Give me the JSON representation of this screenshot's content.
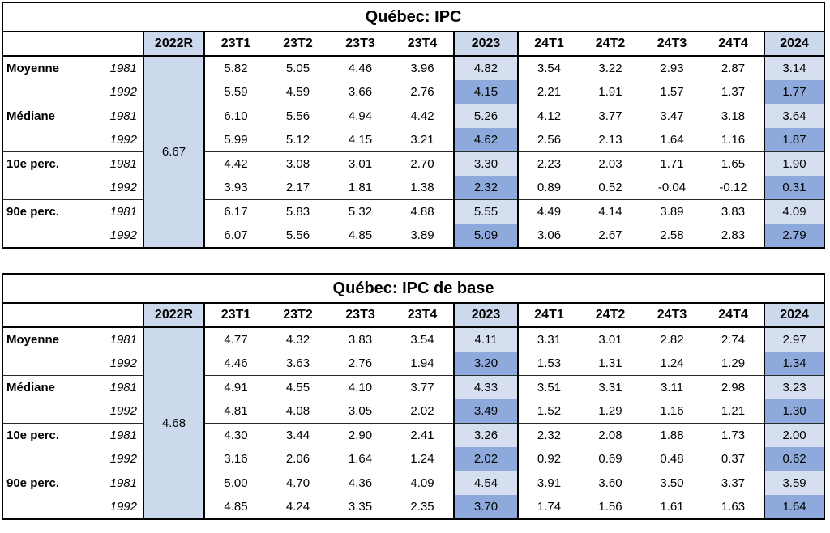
{
  "colors": {
    "header_blue": "#ccd8eb",
    "annual_light_blue": "#d5dff0",
    "annual_dark_blue": "#8ea9db",
    "border_black": "#000000"
  },
  "tables": [
    {
      "title": "Québec: IPC",
      "columns": [
        "2022R",
        "23T1",
        "23T2",
        "23T3",
        "23T4",
        "2023",
        "24T1",
        "24T2",
        "24T3",
        "24T4",
        "2024"
      ],
      "ref_value": "6.67",
      "rows": [
        {
          "group": "Moyenne",
          "year": "1981",
          "values": [
            "5.82",
            "5.05",
            "4.46",
            "3.96",
            "4.82",
            "3.54",
            "3.22",
            "2.93",
            "2.87",
            "3.14"
          ]
        },
        {
          "group": "",
          "year": "1992",
          "values": [
            "5.59",
            "4.59",
            "3.66",
            "2.76",
            "4.15",
            "2.21",
            "1.91",
            "1.57",
            "1.37",
            "1.77"
          ]
        },
        {
          "group": "Médiane",
          "year": "1981",
          "values": [
            "6.10",
            "5.56",
            "4.94",
            "4.42",
            "5.26",
            "4.12",
            "3.77",
            "3.47",
            "3.18",
            "3.64"
          ]
        },
        {
          "group": "",
          "year": "1992",
          "values": [
            "5.99",
            "5.12",
            "4.15",
            "3.21",
            "4.62",
            "2.56",
            "2.13",
            "1.64",
            "1.16",
            "1.87"
          ]
        },
        {
          "group": "10e perc.",
          "year": "1981",
          "values": [
            "4.42",
            "3.08",
            "3.01",
            "2.70",
            "3.30",
            "2.23",
            "2.03",
            "1.71",
            "1.65",
            "1.90"
          ]
        },
        {
          "group": "",
          "year": "1992",
          "values": [
            "3.93",
            "2.17",
            "1.81",
            "1.38",
            "2.32",
            "0.89",
            "0.52",
            "-0.04",
            "-0.12",
            "0.31"
          ]
        },
        {
          "group": "90e perc.",
          "year": "1981",
          "values": [
            "6.17",
            "5.83",
            "5.32",
            "4.88",
            "5.55",
            "4.49",
            "4.14",
            "3.89",
            "3.83",
            "4.09"
          ]
        },
        {
          "group": "",
          "year": "1992",
          "values": [
            "6.07",
            "5.56",
            "4.85",
            "3.89",
            "5.09",
            "3.06",
            "2.67",
            "2.58",
            "2.83",
            "2.79"
          ]
        }
      ]
    },
    {
      "title": "Québec: IPC de base",
      "columns": [
        "2022R",
        "23T1",
        "23T2",
        "23T3",
        "23T4",
        "2023",
        "24T1",
        "24T2",
        "24T3",
        "24T4",
        "2024"
      ],
      "ref_value": "4.68",
      "rows": [
        {
          "group": "Moyenne",
          "year": "1981",
          "values": [
            "4.77",
            "4.32",
            "3.83",
            "3.54",
            "4.11",
            "3.31",
            "3.01",
            "2.82",
            "2.74",
            "2.97"
          ]
        },
        {
          "group": "",
          "year": "1992",
          "values": [
            "4.46",
            "3.63",
            "2.76",
            "1.94",
            "3.20",
            "1.53",
            "1.31",
            "1.24",
            "1.29",
            "1.34"
          ]
        },
        {
          "group": "Médiane",
          "year": "1981",
          "values": [
            "4.91",
            "4.55",
            "4.10",
            "3.77",
            "4.33",
            "3.51",
            "3.31",
            "3.11",
            "2.98",
            "3.23"
          ]
        },
        {
          "group": "",
          "year": "1992",
          "values": [
            "4.81",
            "4.08",
            "3.05",
            "2.02",
            "3.49",
            "1.52",
            "1.29",
            "1.16",
            "1.21",
            "1.30"
          ]
        },
        {
          "group": "10e perc.",
          "year": "1981",
          "values": [
            "4.30",
            "3.44",
            "2.90",
            "2.41",
            "3.26",
            "2.32",
            "2.08",
            "1.88",
            "1.73",
            "2.00"
          ]
        },
        {
          "group": "",
          "year": "1992",
          "values": [
            "3.16",
            "2.06",
            "1.64",
            "1.24",
            "2.02",
            "0.92",
            "0.69",
            "0.48",
            "0.37",
            "0.62"
          ]
        },
        {
          "group": "90e perc.",
          "year": "1981",
          "values": [
            "5.00",
            "4.70",
            "4.36",
            "4.09",
            "4.54",
            "3.91",
            "3.60",
            "3.50",
            "3.37",
            "3.59"
          ]
        },
        {
          "group": "",
          "year": "1992",
          "values": [
            "4.85",
            "4.24",
            "3.35",
            "2.35",
            "3.70",
            "1.74",
            "1.56",
            "1.61",
            "1.63",
            "1.64"
          ]
        }
      ]
    }
  ]
}
